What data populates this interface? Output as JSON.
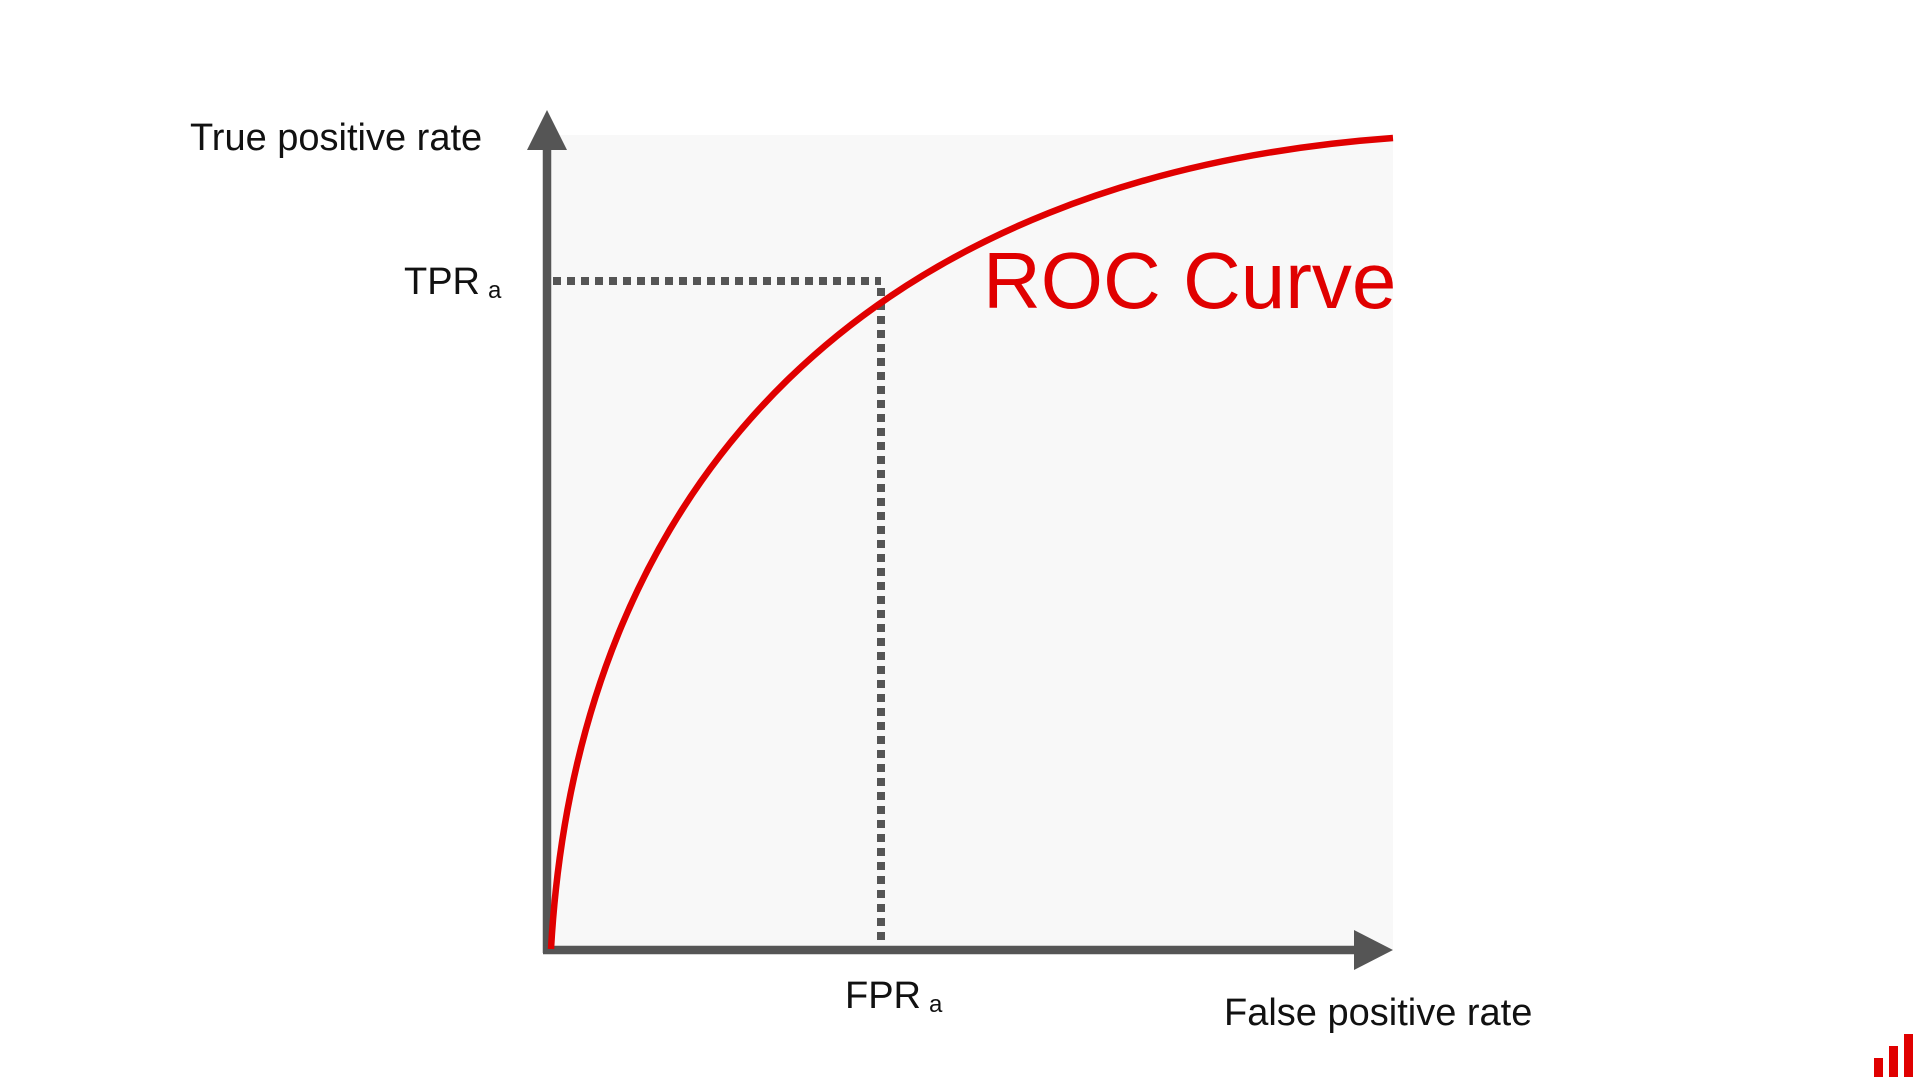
{
  "diagram": {
    "title": "ROC Curve",
    "y_axis_label": "True positive rate",
    "x_axis_label": "False positive rate",
    "y_marker": {
      "label": "TPR",
      "subscript": "a"
    },
    "x_marker": {
      "label": "FPR",
      "subscript": "a"
    }
  }
}
